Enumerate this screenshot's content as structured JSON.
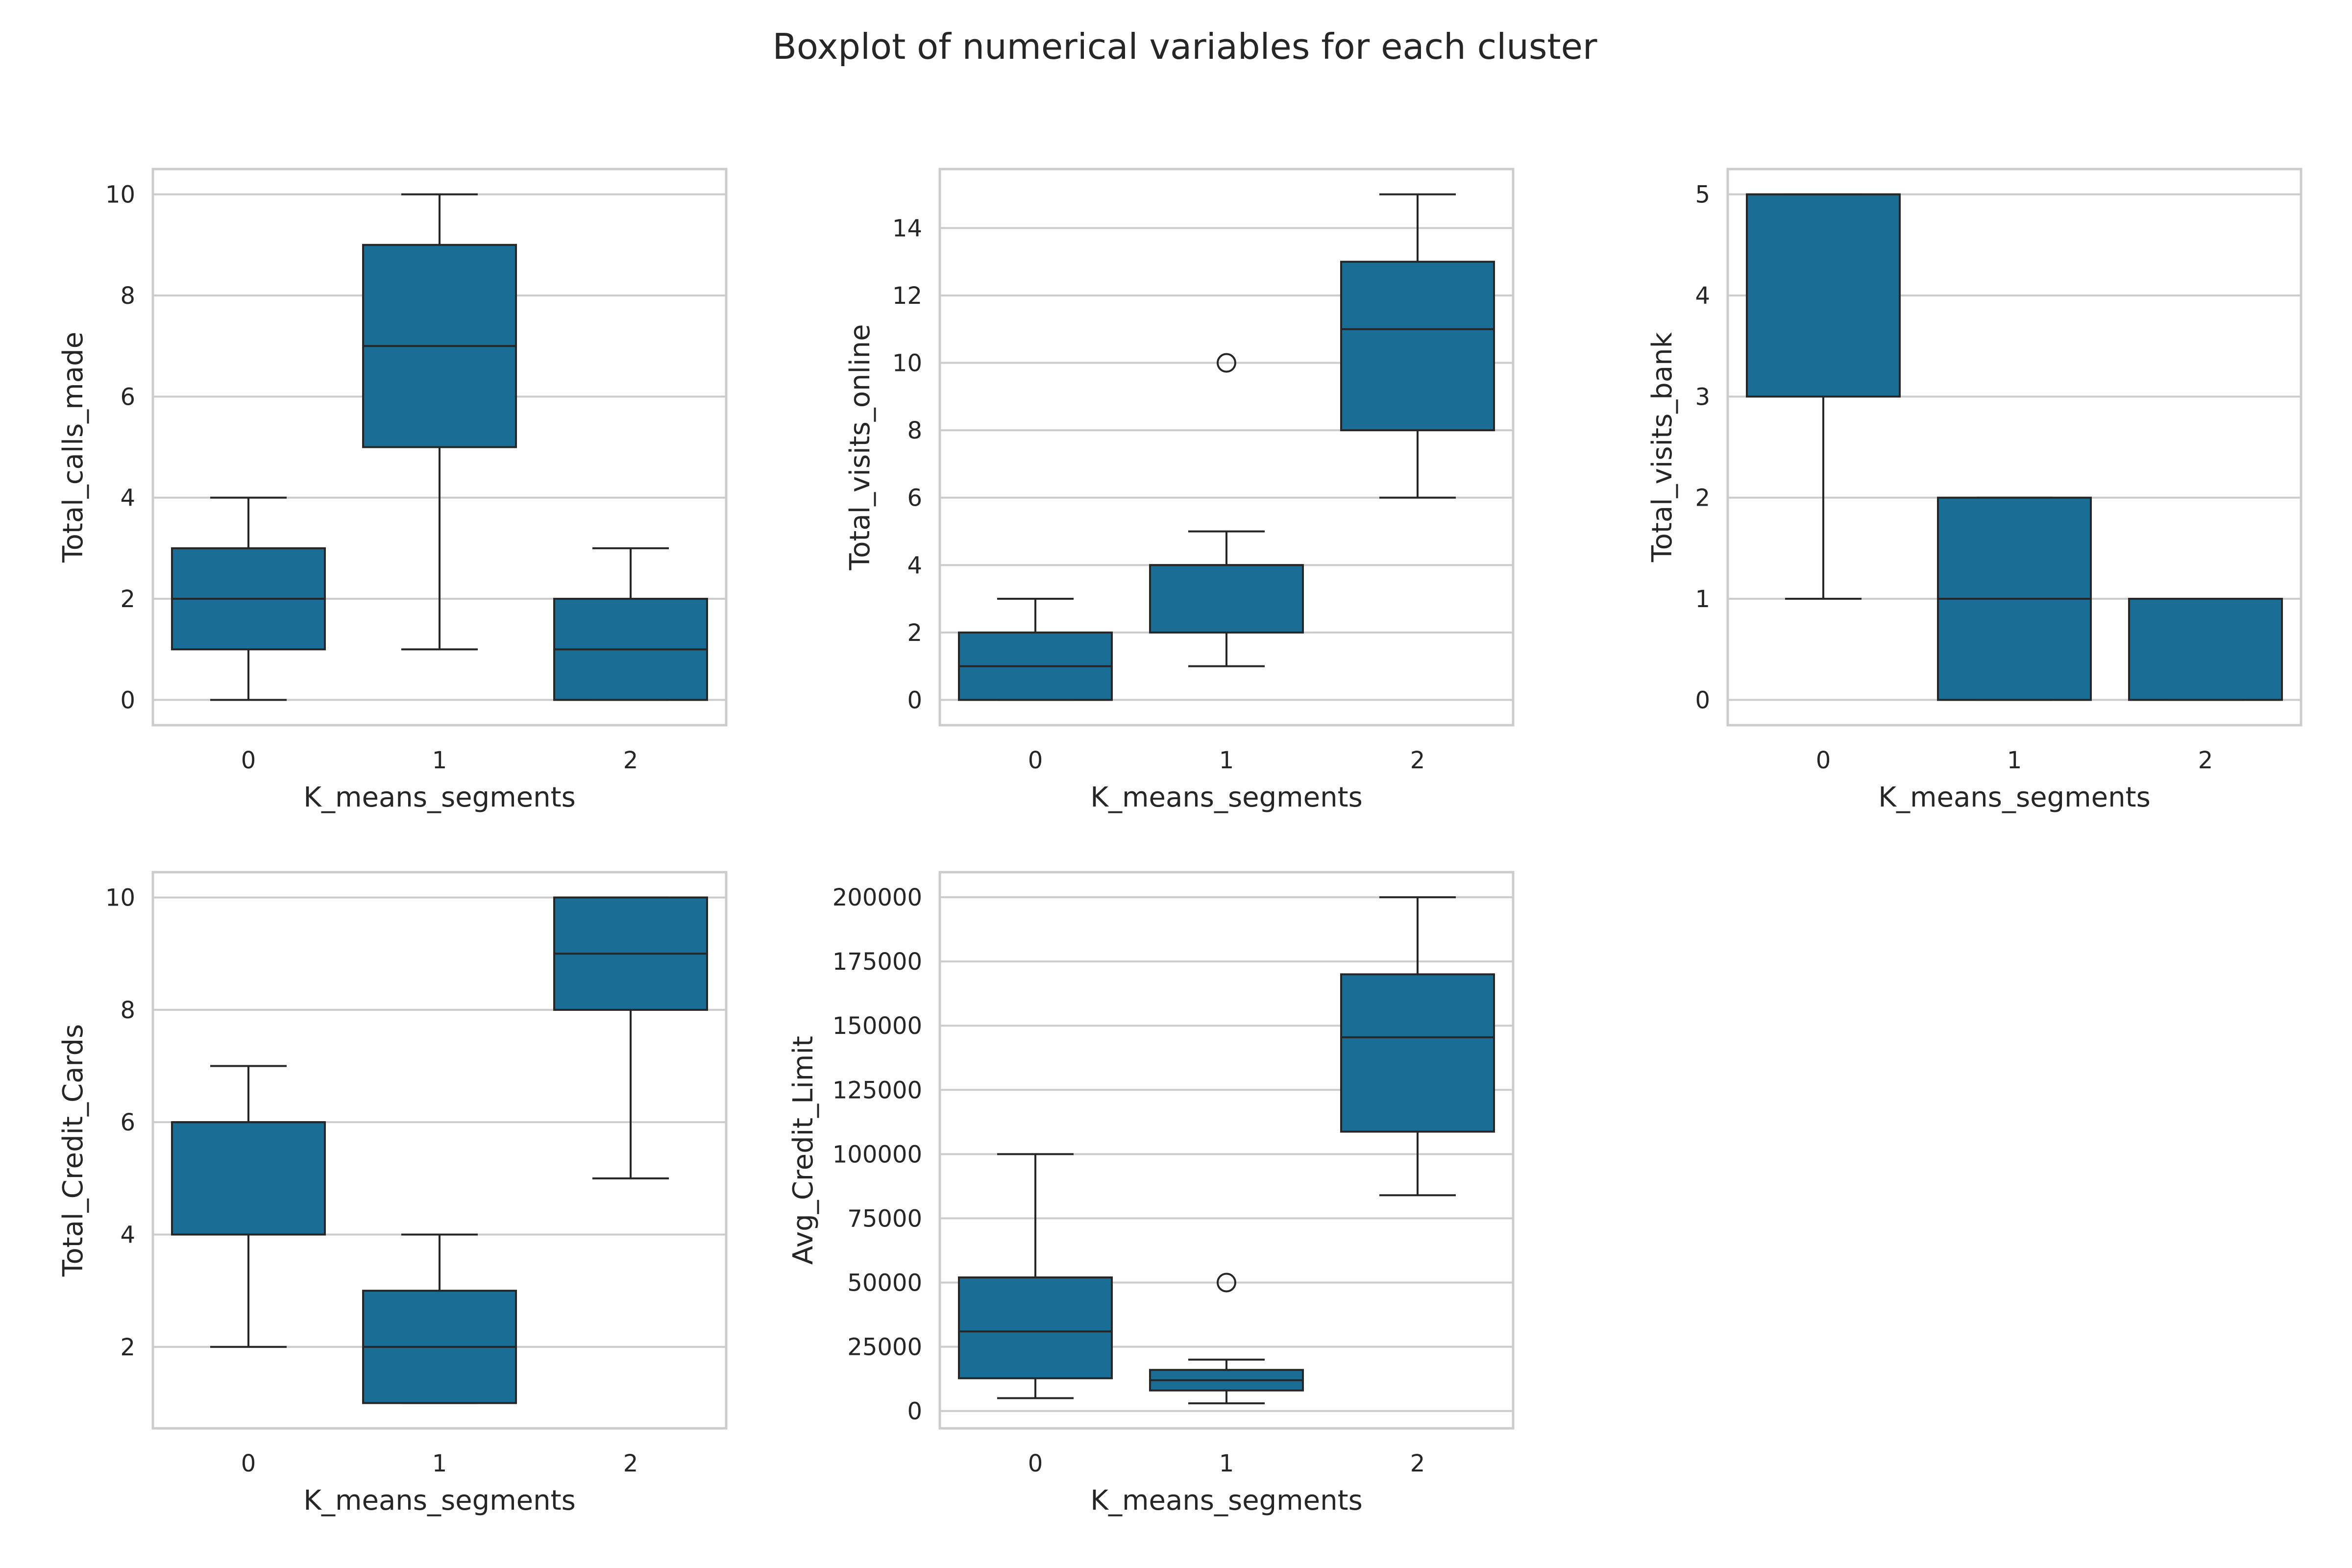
{
  "figure": {
    "title": "Boxplot of numerical variables for each cluster"
  },
  "style": {
    "box_fill": "#1a6e95",
    "line_color": "#262626",
    "grid_color": "#cccccc",
    "frame_color": "#cccccc",
    "background": "#ffffff"
  },
  "chart_data": [
    {
      "type": "box",
      "xlabel": "K_means_segments",
      "ylabel": "Total_calls_made",
      "categories": [
        "0",
        "1",
        "2"
      ],
      "ylim": [
        -0.5,
        10.5
      ],
      "yticks": [
        0,
        2,
        4,
        6,
        8,
        10
      ],
      "ytick_labels": [
        "0",
        "2",
        "4",
        "6",
        "8",
        "10"
      ],
      "grid": true,
      "boxes": [
        {
          "whislo": 0,
          "q1": 1,
          "med": 2,
          "q3": 3,
          "whishi": 4,
          "fliers": []
        },
        {
          "whislo": 1,
          "q1": 5,
          "med": 7,
          "q3": 9,
          "whishi": 10,
          "fliers": []
        },
        {
          "whislo": 0,
          "q1": 0,
          "med": 1,
          "q3": 2,
          "whishi": 3,
          "fliers": []
        }
      ]
    },
    {
      "type": "box",
      "xlabel": "K_means_segments",
      "ylabel": "Total_visits_online",
      "categories": [
        "0",
        "1",
        "2"
      ],
      "ylim": [
        -0.75,
        15.75
      ],
      "yticks": [
        0,
        2,
        4,
        6,
        8,
        10,
        12,
        14
      ],
      "ytick_labels": [
        "0",
        "2",
        "4",
        "6",
        "8",
        "10",
        "12",
        "14"
      ],
      "grid": true,
      "boxes": [
        {
          "whislo": 0,
          "q1": 0,
          "med": 1,
          "q3": 2,
          "whishi": 3,
          "fliers": []
        },
        {
          "whislo": 1,
          "q1": 2,
          "med": 4,
          "q3": 4,
          "whishi": 5,
          "fliers": [
            10
          ]
        },
        {
          "whislo": 6,
          "q1": 8,
          "med": 11,
          "q3": 13,
          "whishi": 15,
          "fliers": []
        }
      ]
    },
    {
      "type": "box",
      "xlabel": "K_means_segments",
      "ylabel": "Total_visits_bank",
      "categories": [
        "0",
        "1",
        "2"
      ],
      "ylim": [
        -0.25,
        5.25
      ],
      "yticks": [
        0,
        1,
        2,
        3,
        4,
        5
      ],
      "ytick_labels": [
        "0",
        "1",
        "2",
        "3",
        "4",
        "5"
      ],
      "grid": true,
      "boxes": [
        {
          "whislo": 1,
          "q1": 3,
          "med": 5,
          "q3": 5,
          "whishi": 5,
          "fliers": []
        },
        {
          "whislo": 0,
          "q1": 0,
          "med": 1,
          "q3": 2,
          "whishi": 2,
          "fliers": []
        },
        {
          "whislo": 0,
          "q1": 0,
          "med": 1,
          "q3": 1,
          "whishi": 1,
          "fliers": []
        }
      ]
    },
    {
      "type": "box",
      "xlabel": "K_means_segments",
      "ylabel": "Total_Credit_Cards",
      "categories": [
        "0",
        "1",
        "2"
      ],
      "ylim": [
        0.55,
        10.45
      ],
      "yticks": [
        2,
        4,
        6,
        8,
        10
      ],
      "ytick_labels": [
        "2",
        "4",
        "6",
        "8",
        "10"
      ],
      "grid": true,
      "boxes": [
        {
          "whislo": 2,
          "q1": 4,
          "med": 6,
          "q3": 6,
          "whishi": 7,
          "fliers": []
        },
        {
          "whislo": 1,
          "q1": 1,
          "med": 2,
          "q3": 3,
          "whishi": 4,
          "fliers": []
        },
        {
          "whislo": 5,
          "q1": 8,
          "med": 9,
          "q3": 10,
          "whishi": 10,
          "fliers": []
        }
      ]
    },
    {
      "type": "box",
      "xlabel": "K_means_segments",
      "ylabel": "Avg_Credit_Limit",
      "categories": [
        "0",
        "1",
        "2"
      ],
      "ylim": [
        -6750,
        209750
      ],
      "yticks": [
        0,
        25000,
        50000,
        75000,
        100000,
        125000,
        150000,
        175000,
        200000
      ],
      "ytick_labels": [
        "0",
        "25000",
        "50000",
        "75000",
        "100000",
        "125000",
        "150000",
        "175000",
        "200000"
      ],
      "grid": true,
      "boxes": [
        {
          "whislo": 5000,
          "q1": 12750,
          "med": 31000,
          "q3": 52000,
          "whishi": 100000,
          "fliers": []
        },
        {
          "whislo": 3000,
          "q1": 8000,
          "med": 12000,
          "q3": 16000,
          "whishi": 20000,
          "fliers": [
            50000
          ]
        },
        {
          "whislo": 84000,
          "q1": 108750,
          "med": 145500,
          "q3": 170000,
          "whishi": 200000,
          "fliers": []
        }
      ]
    }
  ]
}
